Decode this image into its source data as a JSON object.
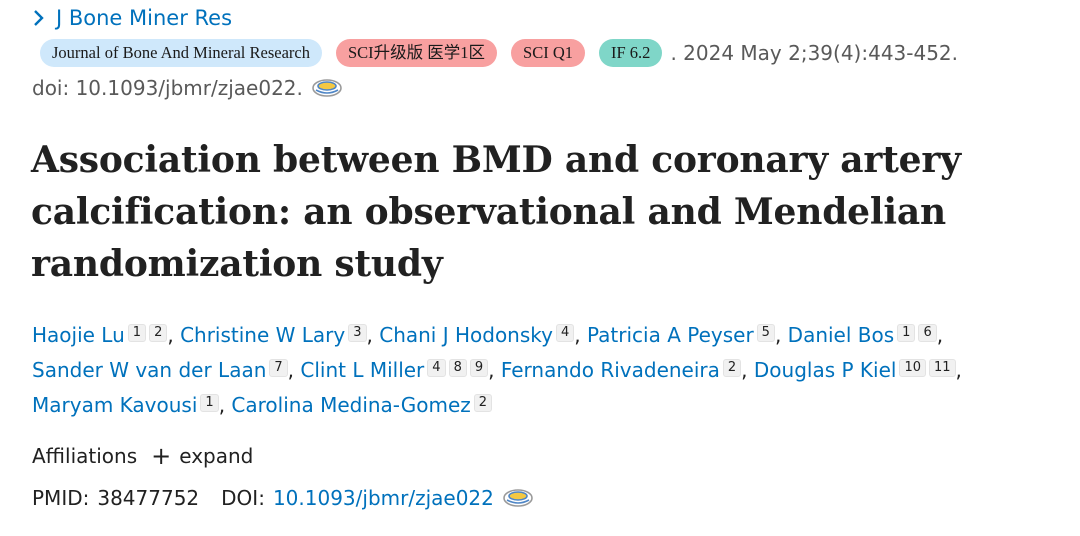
{
  "journal": {
    "abbrev": "J Bone Miner Res"
  },
  "badges": [
    {
      "label": "Journal of Bone And Mineral Research",
      "bg": "#cfe8fb"
    },
    {
      "label": "SCI升级版 医学1区",
      "bg": "#f8a0a0"
    },
    {
      "label": "SCI Q1",
      "bg": "#f8a0a0"
    },
    {
      "label": "IF 6.2",
      "bg": "#7fd6c8"
    }
  ],
  "citation": ". 2024 May 2;39(4):443-452.",
  "doi_line": "doi: 10.1093/jbmr/zjae022.",
  "title": "Association between BMD and coronary artery calcification: an observational and Mendelian randomization study",
  "authors": [
    {
      "name": "Haojie Lu",
      "affs": [
        "1",
        "2"
      ]
    },
    {
      "name": "Christine W Lary",
      "affs": [
        "3"
      ]
    },
    {
      "name": "Chani J Hodonsky",
      "affs": [
        "4"
      ]
    },
    {
      "name": "Patricia A Peyser",
      "affs": [
        "5"
      ]
    },
    {
      "name": "Daniel Bos",
      "affs": [
        "1",
        "6"
      ]
    },
    {
      "name": "Sander W van der Laan",
      "affs": [
        "7"
      ]
    },
    {
      "name": "Clint L Miller",
      "affs": [
        "4",
        "8",
        "9"
      ]
    },
    {
      "name": "Fernando Rivadeneira",
      "affs": [
        "2"
      ]
    },
    {
      "name": "Douglas P Kiel",
      "affs": [
        "10",
        "11"
      ]
    },
    {
      "name": "Maryam Kavousi",
      "affs": [
        "1"
      ]
    },
    {
      "name": "Carolina Medina-Gomez",
      "affs": [
        "2"
      ]
    }
  ],
  "affiliations": {
    "label": "Affiliations",
    "expand_label": "expand"
  },
  "ids": {
    "pmid_label": "PMID:",
    "pmid": "38477752",
    "doi_label": "DOI:",
    "doi": "10.1093/jbmr/zjae022"
  },
  "colors": {
    "link": "#0071bc",
    "text": "#212121",
    "muted": "#595959"
  }
}
